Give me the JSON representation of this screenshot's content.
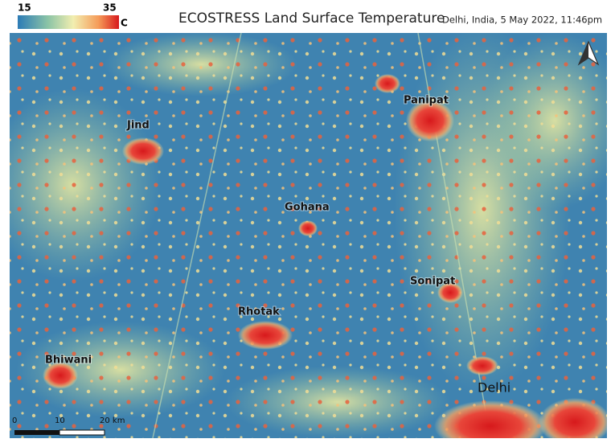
{
  "header": {
    "title": "ECOSTRESS Land Surface Temperature",
    "subtitle": "Delhi, India, 5 May 2022, 11:46pm"
  },
  "colorbar": {
    "min_label": "15",
    "max_label": "35",
    "unit": "C"
  },
  "places": [
    {
      "label": "Jind"
    },
    {
      "label": "Panipat"
    },
    {
      "label": "Gohana"
    },
    {
      "label": "Sonipat"
    },
    {
      "label": "Rhotak"
    },
    {
      "label": "Bhiwani"
    },
    {
      "label": "Delhi"
    }
  ],
  "scale_bar": {
    "labels": [
      "0",
      "10",
      "20 km"
    ]
  }
}
